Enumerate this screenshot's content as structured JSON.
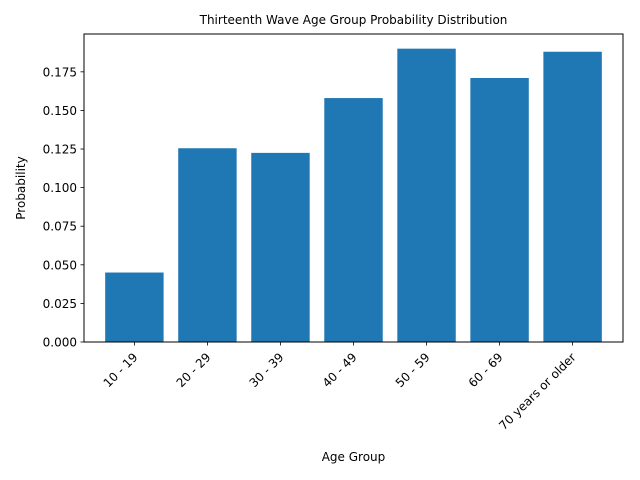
{
  "chart_data": {
    "type": "bar",
    "title": "Thirteenth Wave Age Group Probability Distribution",
    "xlabel": "Age Group",
    "ylabel": "Probability",
    "categories": [
      "10 - 19",
      "20 - 29",
      "30 - 39",
      "40 - 49",
      "50 - 59",
      "60 - 69",
      "70 years or older"
    ],
    "values": [
      0.045,
      0.1255,
      0.1225,
      0.158,
      0.19,
      0.171,
      0.188
    ],
    "ylim": [
      0,
      0.1995
    ],
    "yticks": [
      0.0,
      0.025,
      0.05,
      0.075,
      0.1,
      0.125,
      0.15,
      0.175
    ],
    "ytick_labels": [
      "0.000",
      "0.025",
      "0.050",
      "0.075",
      "0.100",
      "0.125",
      "0.150",
      "0.175"
    ],
    "grid": false,
    "bar_color": "#1f77b4"
  }
}
